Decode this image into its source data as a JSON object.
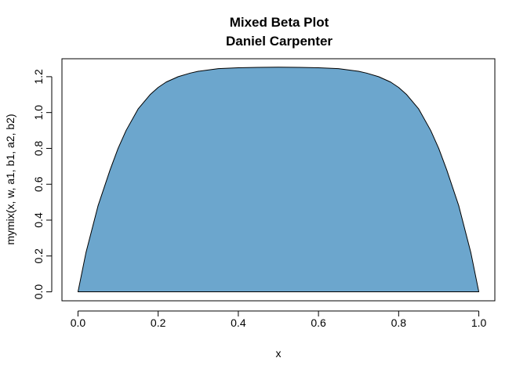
{
  "chart_data": {
    "type": "area",
    "title": "Mixed Beta Plot",
    "subtitle": "Daniel Carpenter",
    "xlabel": "x",
    "ylabel": "mymix(x, w, a1, b1, a2, b2)",
    "xlim": [
      -0.04,
      1.04
    ],
    "ylim": [
      -0.05,
      1.3
    ],
    "x_ticks": [
      "0.0",
      "0.2",
      "0.4",
      "0.6",
      "0.8",
      "1.0"
    ],
    "y_ticks": [
      "0.0",
      "0.2",
      "0.4",
      "0.6",
      "0.8",
      "1.0",
      "1.2"
    ],
    "grid": false,
    "fill_color": "#6CA6CD",
    "line_color": "#000000",
    "x": [
      0.0,
      0.02,
      0.05,
      0.08,
      0.1,
      0.12,
      0.15,
      0.18,
      0.2,
      0.22,
      0.25,
      0.28,
      0.3,
      0.35,
      0.4,
      0.45,
      0.5,
      0.55,
      0.6,
      0.65,
      0.7,
      0.72,
      0.75,
      0.78,
      0.8,
      0.82,
      0.85,
      0.88,
      0.9,
      0.92,
      0.95,
      0.98,
      1.0
    ],
    "y": [
      0.0,
      0.22,
      0.48,
      0.68,
      0.8,
      0.9,
      1.02,
      1.1,
      1.14,
      1.17,
      1.2,
      1.22,
      1.23,
      1.245,
      1.25,
      1.252,
      1.253,
      1.252,
      1.25,
      1.245,
      1.23,
      1.22,
      1.2,
      1.17,
      1.14,
      1.1,
      1.02,
      0.9,
      0.8,
      0.68,
      0.48,
      0.22,
      0.0
    ]
  }
}
